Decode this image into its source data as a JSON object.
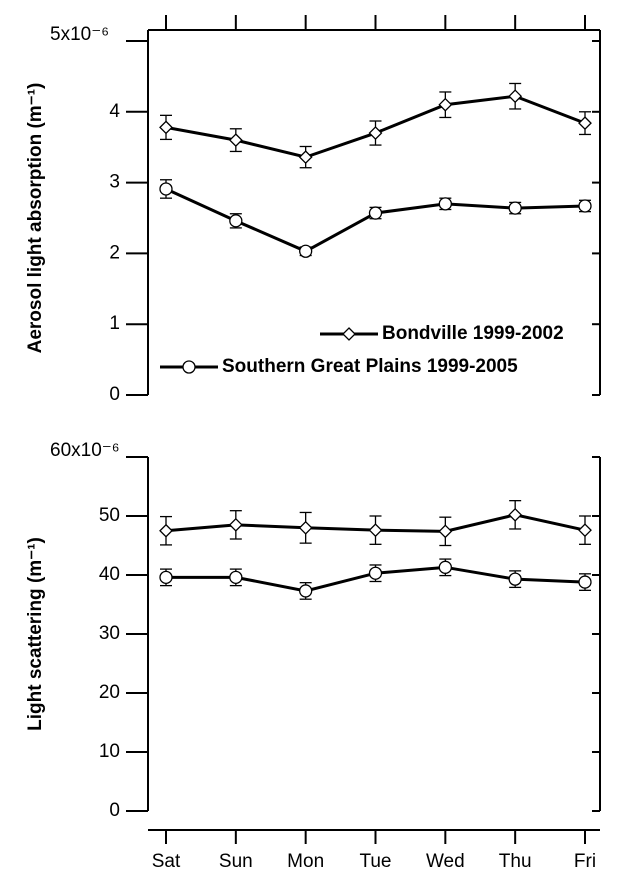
{
  "chart_data": [
    {
      "type": "line",
      "ylabel": "Aerosol light absorption (m⁻¹)",
      "ylim": [
        0,
        5
      ],
      "yticks": [
        0,
        1,
        2,
        3,
        4,
        {
          "value": 5,
          "label": "5x10⁻⁶"
        }
      ],
      "legend": "lower right",
      "series": [
        {
          "name": "Bondville 1999-2002",
          "color": "#000000",
          "marker": "diamond",
          "values": [
            3.78,
            3.6,
            3.36,
            3.7,
            4.1,
            4.22,
            3.84
          ],
          "errors": [
            0.17,
            0.16,
            0.15,
            0.17,
            0.18,
            0.18,
            0.16
          ]
        },
        {
          "name": "Southern Great Plains 1999-2005",
          "color": "#000000",
          "marker": "circle",
          "values": [
            2.91,
            2.46,
            2.03,
            2.57,
            2.7,
            2.64,
            2.67
          ],
          "errors": [
            0.13,
            0.1,
            0.06,
            0.08,
            0.08,
            0.08,
            0.08
          ]
        }
      ]
    },
    {
      "type": "line",
      "ylabel": "Light scattering (m⁻¹)",
      "categories": [
        "Sat",
        "Sun",
        "Mon",
        "Tue",
        "Wed",
        "Thu",
        "Fri"
      ],
      "ylim": [
        0,
        60
      ],
      "yticks": [
        0,
        10,
        20,
        30,
        40,
        50,
        {
          "value": 60,
          "label": "60x10⁻⁶"
        }
      ],
      "series": [
        {
          "color": "#000000",
          "marker": "diamond",
          "values": [
            47.5,
            48.5,
            48,
            47.6,
            47.4,
            50.2,
            47.6
          ],
          "errors": [
            2.4,
            2.4,
            2.6,
            2.4,
            2.4,
            2.4,
            2.4
          ]
        },
        {
          "color": "#000000",
          "marker": "circle",
          "values": [
            39.6,
            39.6,
            37.3,
            40.3,
            41.3,
            39.3,
            38.8
          ],
          "errors": [
            1.4,
            1.4,
            1.4,
            1.4,
            1.4,
            1.4,
            1.4
          ]
        }
      ]
    }
  ]
}
